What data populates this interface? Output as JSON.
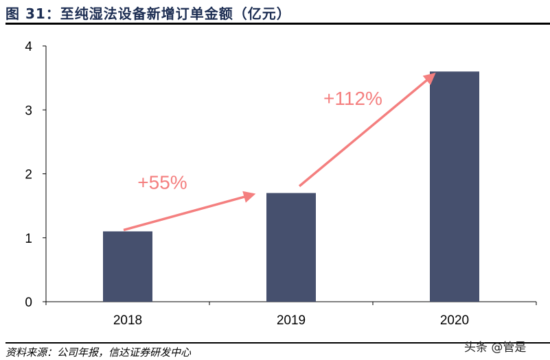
{
  "title": "图 31：至纯湿法设备新增订单金额（亿元）",
  "source": "资料来源：公司年报，信达证券研发中心",
  "watermark": "头条 @管是",
  "colors": {
    "bar": "#46506e",
    "arrow": "#f47f7f",
    "title": "#1c2d52"
  },
  "chart_data": {
    "type": "bar",
    "categories": [
      "2018",
      "2019",
      "2020"
    ],
    "values": [
      1.1,
      1.7,
      3.6
    ],
    "ylim": [
      0,
      4
    ],
    "yticks": [
      "0",
      "1",
      "2",
      "3",
      "4"
    ],
    "grid": false,
    "annotations": [
      {
        "text": "+55%",
        "from": "2018",
        "to": "2019"
      },
      {
        "text": "+112%",
        "from": "2019",
        "to": "2020"
      }
    ]
  }
}
